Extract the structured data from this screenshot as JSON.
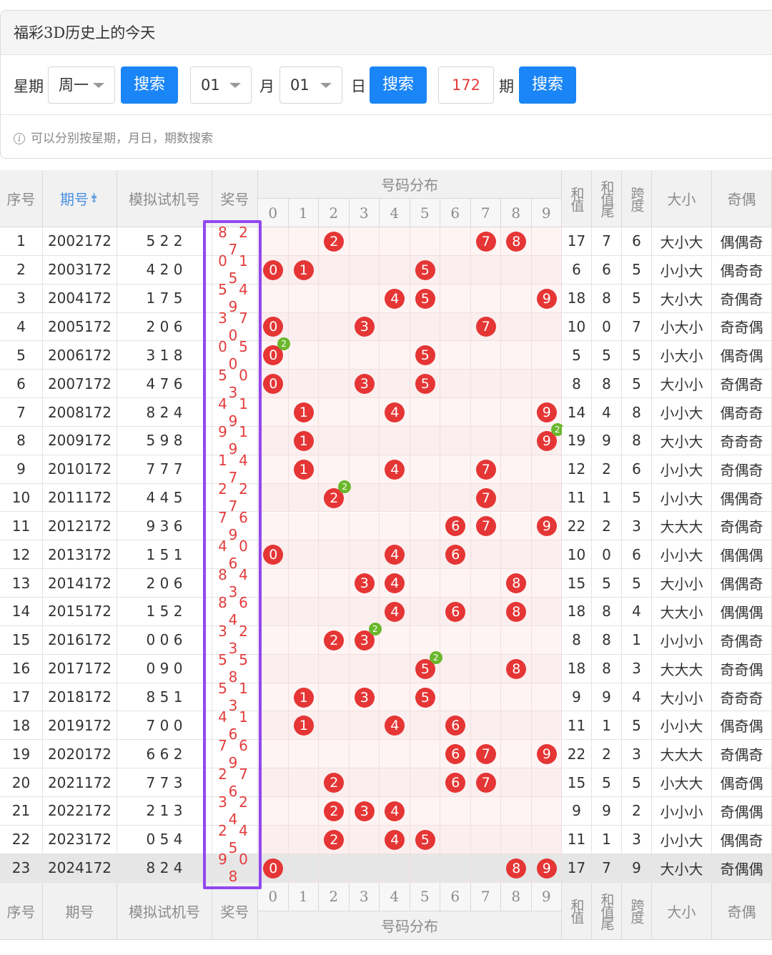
{
  "panel": {
    "title": "福彩3D历史上的今天",
    "week_label": "星期",
    "week_value": "周一",
    "search1": "搜索",
    "month_value": "01",
    "month_label": "月",
    "day_value": "01",
    "day_label": "日",
    "search2": "搜索",
    "issue_value": "172",
    "issue_label": "期",
    "search3": "搜索",
    "tip": "可以分别按星期，月日，期数搜索"
  },
  "table": {
    "head": {
      "seq": "序号",
      "period": "期号",
      "sim": "模拟试机号",
      "prize": "奖号",
      "dist": "号码分布",
      "sum": "和值",
      "tail": "和值尾",
      "span": "跨度",
      "size": "大小",
      "parity": "奇偶",
      "sort_icon": "sort-icon"
    },
    "digits": [
      "0",
      "1",
      "2",
      "3",
      "4",
      "5",
      "6",
      "7",
      "8",
      "9"
    ],
    "rows": [
      {
        "seq": "1",
        "period": "2002172",
        "sim": "5 2 2",
        "prize": "8 2 7",
        "balls": [
          2,
          7,
          8
        ],
        "sum": "17",
        "tail": "7",
        "span": "6",
        "size": "大小大",
        "parity": "偶偶奇"
      },
      {
        "seq": "2",
        "period": "2003172",
        "sim": "4 2 0",
        "prize": "0 1 5",
        "balls": [
          0,
          1,
          5
        ],
        "sum": "6",
        "tail": "6",
        "span": "5",
        "size": "小小大",
        "parity": "偶奇奇"
      },
      {
        "seq": "3",
        "period": "2004172",
        "sim": "1 7 5",
        "prize": "5 4 9",
        "balls": [
          4,
          5,
          9
        ],
        "sum": "18",
        "tail": "8",
        "span": "5",
        "size": "大小大",
        "parity": "奇偶奇"
      },
      {
        "seq": "4",
        "period": "2005172",
        "sim": "2 0 6",
        "prize": "3 7 0",
        "balls": [
          0,
          3,
          7
        ],
        "sum": "10",
        "tail": "0",
        "span": "7",
        "size": "小大小",
        "parity": "奇奇偶"
      },
      {
        "seq": "5",
        "period": "2006172",
        "sim": "3 1 8",
        "prize": "0 5 0",
        "balls": [
          0,
          5
        ],
        "dup": 0,
        "sum": "5",
        "tail": "5",
        "span": "5",
        "size": "小大小",
        "parity": "偶奇偶"
      },
      {
        "seq": "6",
        "period": "2007172",
        "sim": "4 7 6",
        "prize": "5 0 3",
        "balls": [
          0,
          3,
          5
        ],
        "sum": "8",
        "tail": "8",
        "span": "5",
        "size": "大小小",
        "parity": "奇偶奇"
      },
      {
        "seq": "7",
        "period": "2008172",
        "sim": "8 2 4",
        "prize": "4 1 9",
        "balls": [
          1,
          4,
          9
        ],
        "sum": "14",
        "tail": "4",
        "span": "8",
        "size": "小小大",
        "parity": "偶奇奇"
      },
      {
        "seq": "8",
        "period": "2009172",
        "sim": "5 9 8",
        "prize": "9 1 9",
        "balls": [
          1,
          9
        ],
        "dup": 9,
        "sum": "19",
        "tail": "9",
        "span": "8",
        "size": "大小大",
        "parity": "奇奇奇"
      },
      {
        "seq": "9",
        "period": "2010172",
        "sim": "7 7 7",
        "prize": "1 4 7",
        "balls": [
          1,
          4,
          7
        ],
        "sum": "12",
        "tail": "2",
        "span": "6",
        "size": "小小大",
        "parity": "奇偶奇"
      },
      {
        "seq": "10",
        "period": "2011172",
        "sim": "4 4 5",
        "prize": "2 2 7",
        "balls": [
          2,
          7
        ],
        "dup": 2,
        "sum": "11",
        "tail": "1",
        "span": "5",
        "size": "小小大",
        "parity": "偶偶奇"
      },
      {
        "seq": "11",
        "period": "2012172",
        "sim": "9 3 6",
        "prize": "7 6 9",
        "balls": [
          6,
          7,
          9
        ],
        "sum": "22",
        "tail": "2",
        "span": "3",
        "size": "大大大",
        "parity": "奇偶奇"
      },
      {
        "seq": "12",
        "period": "2013172",
        "sim": "1 5 1",
        "prize": "4 0 6",
        "balls": [
          0,
          4,
          6
        ],
        "sum": "10",
        "tail": "0",
        "span": "6",
        "size": "小小大",
        "parity": "偶偶偶"
      },
      {
        "seq": "13",
        "period": "2014172",
        "sim": "2 0 6",
        "prize": "8 4 3",
        "balls": [
          3,
          4,
          8
        ],
        "sum": "15",
        "tail": "5",
        "span": "5",
        "size": "大小小",
        "parity": "偶偶奇"
      },
      {
        "seq": "14",
        "period": "2015172",
        "sim": "1 5 2",
        "prize": "8 6 4",
        "balls": [
          4,
          6,
          8
        ],
        "sum": "18",
        "tail": "8",
        "span": "4",
        "size": "大大小",
        "parity": "偶偶偶"
      },
      {
        "seq": "15",
        "period": "2016172",
        "sim": "0 0 6",
        "prize": "3 2 3",
        "balls": [
          2,
          3
        ],
        "dup": 3,
        "sum": "8",
        "tail": "8",
        "span": "1",
        "size": "小小小",
        "parity": "奇偶奇"
      },
      {
        "seq": "16",
        "period": "2017172",
        "sim": "0 9 0",
        "prize": "5 5 8",
        "balls": [
          5,
          8
        ],
        "dup": 5,
        "sum": "18",
        "tail": "8",
        "span": "3",
        "size": "大大大",
        "parity": "奇奇偶"
      },
      {
        "seq": "17",
        "period": "2018172",
        "sim": "8 5 1",
        "prize": "5 1 3",
        "balls": [
          1,
          3,
          5
        ],
        "sum": "9",
        "tail": "9",
        "span": "4",
        "size": "大小小",
        "parity": "奇奇奇"
      },
      {
        "seq": "18",
        "period": "2019172",
        "sim": "7 0 0",
        "prize": "4 1 6",
        "balls": [
          1,
          4,
          6
        ],
        "sum": "11",
        "tail": "1",
        "span": "5",
        "size": "小小大",
        "parity": "偶奇偶"
      },
      {
        "seq": "19",
        "period": "2020172",
        "sim": "6 6 2",
        "prize": "7 6 9",
        "balls": [
          6,
          7,
          9
        ],
        "sum": "22",
        "tail": "2",
        "span": "3",
        "size": "大大大",
        "parity": "奇偶奇"
      },
      {
        "seq": "20",
        "period": "2021172",
        "sim": "7 7 3",
        "prize": "2 7 6",
        "balls": [
          2,
          6,
          7
        ],
        "sum": "15",
        "tail": "5",
        "span": "5",
        "size": "小大大",
        "parity": "偶奇偶"
      },
      {
        "seq": "21",
        "period": "2022172",
        "sim": "2 1 3",
        "prize": "3 2 4",
        "balls": [
          2,
          3,
          4
        ],
        "sum": "9",
        "tail": "9",
        "span": "2",
        "size": "小小小",
        "parity": "奇偶偶"
      },
      {
        "seq": "22",
        "period": "2023172",
        "sim": "0 5 4",
        "prize": "2 4 5",
        "balls": [
          2,
          4,
          5
        ],
        "sum": "11",
        "tail": "1",
        "span": "3",
        "size": "小小大",
        "parity": "偶偶奇"
      },
      {
        "seq": "23",
        "period": "2024172",
        "sim": "8 2 4",
        "prize": "9 0 8",
        "balls": [
          0,
          8,
          9
        ],
        "sum": "17",
        "tail": "7",
        "span": "9",
        "size": "大小大",
        "parity": "奇偶偶"
      }
    ],
    "dup_badge": "2"
  }
}
